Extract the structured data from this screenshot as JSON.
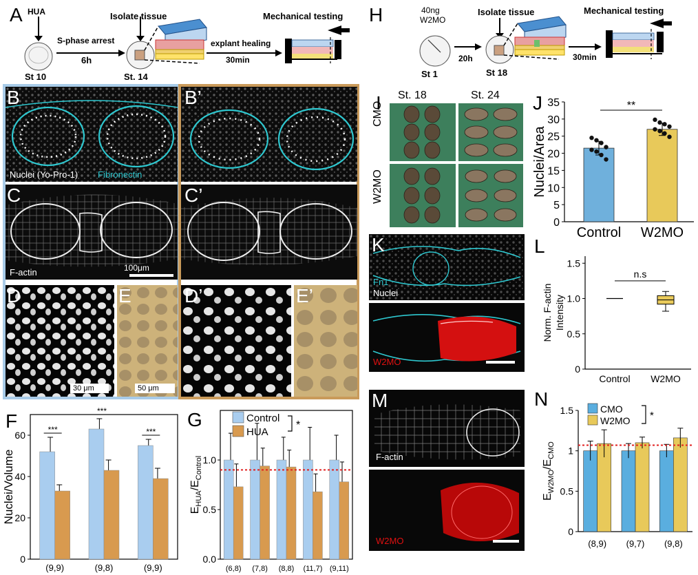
{
  "panel_letters": {
    "A": "A",
    "B": "B",
    "B2": "B’",
    "C": "C",
    "C2": "C’",
    "D": "D",
    "E": "E",
    "D2": "D’",
    "E2": "E’",
    "F": "F",
    "G": "G",
    "H": "H",
    "I": "I",
    "J": "J",
    "K": "K",
    "L": "L",
    "M": "M",
    "N": "N"
  },
  "schematic_A": {
    "drug": "HUA",
    "step1_label": "S-phase arrest",
    "step1_time": "6h",
    "stage_start": "St 10",
    "isolate": "Isolate tissue",
    "stage_mid": "St. 14",
    "step2_label": "explant healing",
    "step2_time": "30min",
    "testing": "Mechanical testing"
  },
  "schematic_H": {
    "dose": "40ng",
    "morpholino": "W2MO",
    "stage_start": "St 1",
    "step1_time": "20h",
    "isolate": "Isolate tissue",
    "stage_mid": "St 18",
    "step2_time": "30min",
    "testing": "Mechanical testing"
  },
  "micrograph_labels": {
    "B_nuclei": "Nuclei (Yo-Pro-1)",
    "B_fibronectin": "Fibronectin",
    "C_factin": "F-actin",
    "C_scale": "100μm",
    "D_scale": "30 μm",
    "E_scale": "50 μm",
    "I_col1": "St. 18",
    "I_col2": "St. 24",
    "I_row1": "CMO",
    "I_row2": "W2MO",
    "K_fn1": "Fn1",
    "K_nuclei": "Nuclei",
    "K_w2mo": "W2MO",
    "M_factin": "F-actin",
    "M_w2mo": "W2MO"
  },
  "colors": {
    "control_blue": "#a9cdef",
    "hua_orange": "#d89a4f",
    "j_blue": "#6fb0dc",
    "j_gold": "#e8c95a",
    "n_blue": "#5aaedf",
    "n_gold": "#e8c95a",
    "frame_blue": "#a8cbe8",
    "frame_orange": "#c99a5a",
    "fibronectin": "#2ec8d0",
    "w2mo_red": "#e01010",
    "dashed_red": "#e02020"
  },
  "chart_data": [
    {
      "panel": "F",
      "type": "bar",
      "ylabel": "Nuclei/Volume",
      "ylim": [
        0,
        70
      ],
      "yticks": [
        0,
        20,
        40,
        60
      ],
      "categories": [
        "(9,9)",
        "(9,8)",
        "(9,9)"
      ],
      "series": [
        {
          "values": [
            52,
            63,
            55
          ],
          "errors": [
            7,
            5,
            3
          ]
        },
        {
          "values": [
            33,
            43,
            39
          ],
          "errors": [
            3,
            5,
            5
          ]
        }
      ],
      "significance": [
        "***",
        "***",
        "***"
      ]
    },
    {
      "panel": "G",
      "type": "bar",
      "ylabel_main": "E",
      "ylabel_sub1": "HUA",
      "ylabel_mid": "/E",
      "ylabel_sub2": "Control",
      "ylim": [
        0,
        1.5
      ],
      "yticks": [
        "0.0",
        "0.5",
        "1.0"
      ],
      "categories": [
        "(6,8)",
        "(7,8)",
        "(8,8)",
        "(11,7)",
        "(9,11)"
      ],
      "series": [
        {
          "name": "Control",
          "values": [
            1.0,
            1.0,
            1.0,
            1.0,
            1.0
          ],
          "errors": [
            0.27,
            0.37,
            0.23,
            0.33,
            0.25
          ]
        },
        {
          "name": "HUA",
          "values": [
            0.73,
            0.94,
            0.93,
            0.68,
            0.78
          ],
          "errors": [
            0.23,
            0.18,
            0.17,
            0.18,
            0.2
          ]
        }
      ],
      "reference_line": 0.9,
      "significance": "*"
    },
    {
      "panel": "J",
      "type": "bar",
      "ylabel": "Nuclei/Area",
      "ylim": [
        0,
        35
      ],
      "yticks": [
        "0",
        "5",
        "10",
        "15",
        "20",
        "25",
        "30",
        "35"
      ],
      "categories": [
        "Control",
        "W2MO"
      ],
      "values": [
        21.5,
        27.0
      ],
      "errors": [
        2.0,
        1.8
      ],
      "points": [
        [
          24.5,
          23.8,
          23.0,
          21.8,
          21.0,
          20.5,
          19.5,
          18.2
        ],
        [
          29.8,
          29.0,
          28.5,
          27.8,
          27.0,
          26.5,
          25.8,
          24.8
        ]
      ],
      "significance": "**"
    },
    {
      "panel": "L",
      "type": "box",
      "ylabel_line1": "Norm. F-actin",
      "ylabel_line2": "Intensity",
      "ylim": [
        0,
        1.6
      ],
      "yticks": [
        "0",
        "0.5",
        "1.0",
        "1.5"
      ],
      "categories": [
        "Control",
        "W2MO"
      ],
      "control": {
        "value": 1.0
      },
      "w2mo": {
        "min": 0.82,
        "q1": 0.92,
        "median": 0.98,
        "q3": 1.04,
        "max": 1.1
      },
      "significance": "n.s"
    },
    {
      "panel": "N",
      "type": "bar",
      "ylabel_main": "E",
      "ylabel_sub1": "W2MO",
      "ylabel_mid": "/E",
      "ylabel_sub2": "CMO",
      "ylim": [
        0,
        1.5
      ],
      "yticks": [
        "0",
        "0.5",
        "1",
        "1.5"
      ],
      "categories": [
        "(8,9)",
        "(9,7)",
        "(9,8)"
      ],
      "series": [
        {
          "name": "CMO",
          "values": [
            1.0,
            1.0,
            1.0
          ],
          "errors": [
            0.12,
            0.09,
            0.08
          ]
        },
        {
          "name": "W2MO",
          "values": [
            1.09,
            1.1,
            1.16
          ],
          "errors": [
            0.17,
            0.07,
            0.12
          ]
        }
      ],
      "reference_line": 1.07,
      "significance": "*"
    }
  ]
}
